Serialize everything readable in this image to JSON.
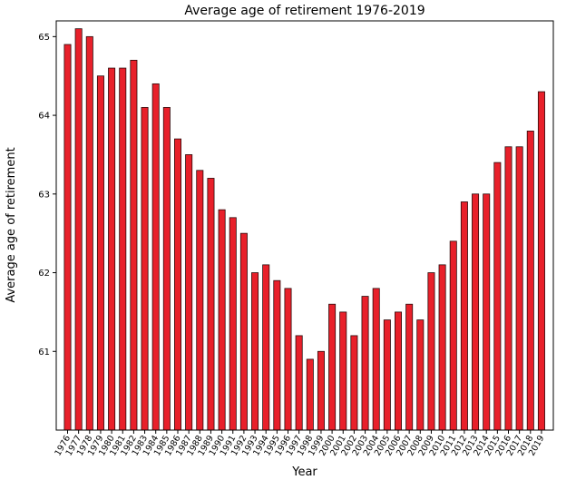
{
  "chart_data": {
    "type": "bar",
    "title": "Average age of retirement 1976-2019",
    "xlabel": "Year",
    "ylabel": "Average age of retirement",
    "categories": [
      "1976",
      "1977",
      "1978",
      "1979",
      "1980",
      "1981",
      "1982",
      "1983",
      "1984",
      "1985",
      "1986",
      "1987",
      "1988",
      "1989",
      "1990",
      "1991",
      "1992",
      "1993",
      "1994",
      "1995",
      "1996",
      "1997",
      "1998",
      "1999",
      "2000",
      "2001",
      "2002",
      "2003",
      "2004",
      "2005",
      "2006",
      "2007",
      "2008",
      "2009",
      "2010",
      "2011",
      "2012",
      "2013",
      "2014",
      "2015",
      "2016",
      "2017",
      "2018",
      "2019"
    ],
    "values": [
      64.9,
      65.1,
      65.0,
      64.5,
      64.6,
      64.6,
      64.7,
      64.1,
      64.4,
      64.1,
      63.7,
      63.5,
      63.3,
      63.2,
      62.8,
      62.7,
      62.5,
      62.0,
      62.1,
      61.9,
      61.8,
      61.2,
      60.9,
      61.0,
      61.6,
      61.5,
      61.2,
      61.7,
      61.8,
      61.4,
      61.5,
      61.6,
      61.4,
      62.0,
      62.1,
      62.4,
      62.9,
      63.0,
      63.0,
      63.4,
      63.6,
      63.6,
      63.8,
      64.3
    ],
    "ylim": [
      60,
      65.2
    ],
    "yticks": [
      61,
      62,
      63,
      64,
      65
    ],
    "bar_color": "#e8202a",
    "edge_color": "#2a0a0a",
    "grid": false,
    "legend": "none"
  }
}
